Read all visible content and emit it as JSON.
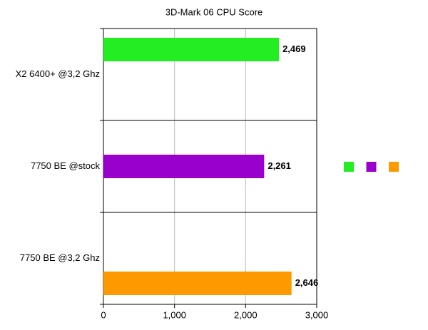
{
  "chart_data": {
    "type": "bar",
    "orientation": "horizontal",
    "title": "3D-Mark 06 CPU Score",
    "categories": [
      "X2 6400+ @3,2 Ghz",
      "7750 BE @stock",
      "7750 BE @3,2 Ghz"
    ],
    "series": [
      {
        "color": "#22ee22",
        "values": [
          2469,
          null,
          null
        ],
        "value_labels": [
          "2,469",
          null,
          null
        ]
      },
      {
        "color": "#9900cc",
        "values": [
          null,
          2261,
          null
        ],
        "value_labels": [
          null,
          "2,261",
          null
        ]
      },
      {
        "color": "#ff9900",
        "values": [
          null,
          null,
          2646
        ],
        "value_labels": [
          null,
          null,
          "2,646"
        ]
      }
    ],
    "xlim": [
      0,
      3000
    ],
    "xticks": [
      0,
      {
        "value": 1000,
        "label": "1,000"
      },
      {
        "value": 2000,
        "label": "2,000"
      },
      {
        "value": 3000,
        "label": "3,000"
      }
    ],
    "grid": true,
    "legend": "right"
  }
}
